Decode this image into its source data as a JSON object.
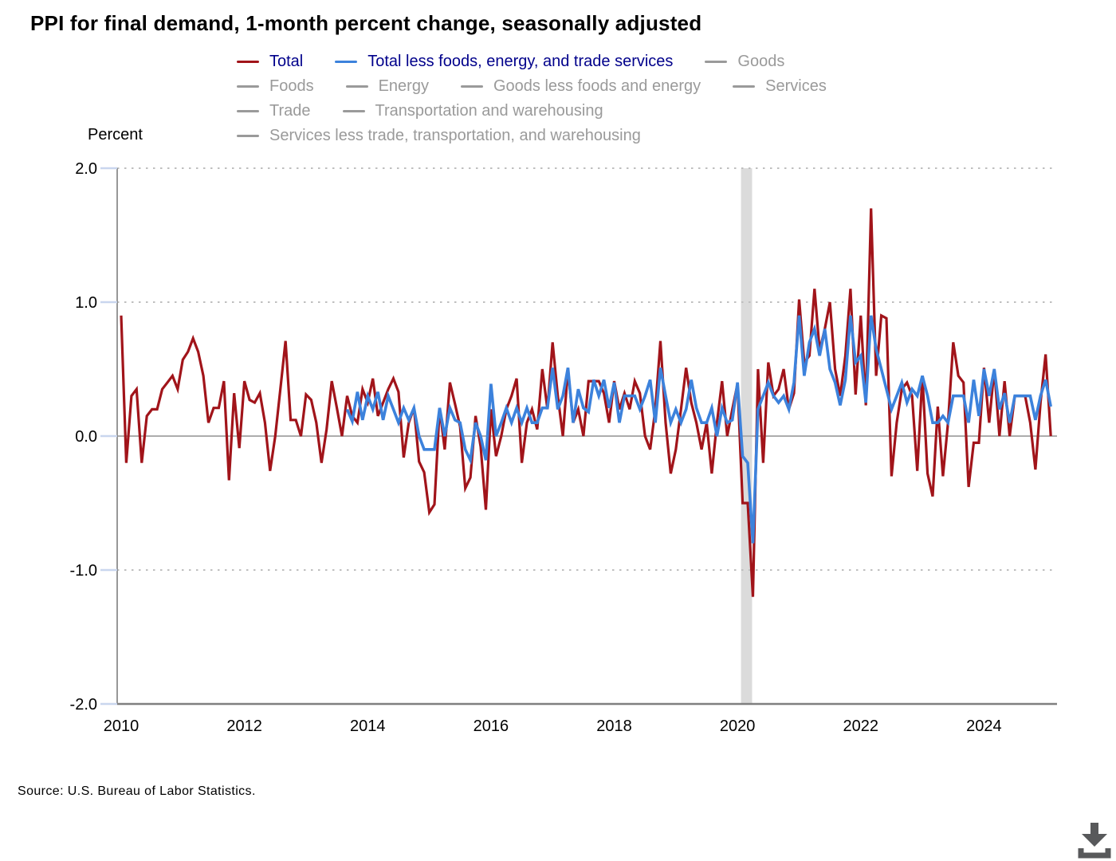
{
  "title": "PPI for final demand, 1-month percent change, seasonally adjusted",
  "source": "Source: U.S. Bureau of Labor Statistics.",
  "colors": {
    "total": "#A1141A",
    "core": "#3C82DC",
    "inactive": "#9A9A9A",
    "active_label": "#00008B",
    "recession_band": "#DBDBDB",
    "zero_line": "#ADADAD",
    "grid_dotted": "#BFBFBF",
    "axis": "#7F7F7F",
    "tick": "#C9D6EE",
    "download_icon": "#58595B"
  },
  "legend": {
    "rows": [
      [
        {
          "label": "Total",
          "state": "active",
          "series": "total"
        },
        {
          "label": "Total less foods, energy, and trade services",
          "state": "active",
          "series": "core"
        },
        {
          "label": "Goods",
          "state": "inactive",
          "series": "inactive"
        }
      ],
      [
        {
          "label": "Foods",
          "state": "inactive",
          "series": "inactive"
        },
        {
          "label": "Energy",
          "state": "inactive",
          "series": "inactive"
        },
        {
          "label": "Goods less foods and energy",
          "state": "inactive",
          "series": "inactive"
        },
        {
          "label": "Services",
          "state": "inactive",
          "series": "inactive"
        }
      ],
      [
        {
          "label": "Trade",
          "state": "inactive",
          "series": "inactive"
        },
        {
          "label": "Transportation and warehousing",
          "state": "inactive",
          "series": "inactive"
        }
      ],
      [
        {
          "label": "Services less trade, transportation, and warehousing",
          "state": "inactive",
          "series": "inactive"
        }
      ]
    ]
  },
  "chart_data": {
    "type": "line",
    "title": "PPI for final demand, 1-month percent change, seasonally adjusted",
    "ylabel": "Percent",
    "xlabel": "",
    "ylim": [
      -2.0,
      2.0
    ],
    "yticks": [
      "2.0",
      "1.0",
      "0.0",
      "-1.0",
      "-2.0"
    ],
    "ytick_values": [
      2.0,
      1.0,
      0.0,
      -1.0,
      -2.0
    ],
    "xticks": [
      "2010",
      "2012",
      "2014",
      "2016",
      "2018",
      "2020",
      "2022",
      "2024"
    ],
    "x_unit": "month",
    "x_start": "2010-01",
    "x_end": "2025-02",
    "grid": "dotted horizontal at -1.0, 1.0, 2.0; solid at 0.0",
    "legend_position": "top",
    "recession_band": {
      "from": "2020-02",
      "to": "2020-04"
    },
    "series": [
      {
        "name": "Total",
        "color": "#A1141A",
        "start": "2010-01",
        "start_month_index": 0,
        "values": [
          0.9,
          -0.2,
          0.3,
          0.35,
          -0.2,
          0.15,
          0.2,
          0.2,
          0.35,
          0.4,
          0.45,
          0.35,
          0.57,
          0.63,
          0.73,
          0.63,
          0.45,
          0.1,
          0.21,
          0.21,
          0.41,
          -0.33,
          0.32,
          -0.09,
          0.41,
          0.27,
          0.25,
          0.32,
          0.1,
          -0.26,
          0.0,
          0.35,
          0.71,
          0.12,
          0.12,
          0.0,
          0.31,
          0.27,
          0.1,
          -0.2,
          0.05,
          0.41,
          0.21,
          0.0,
          0.3,
          0.15,
          0.1,
          0.35,
          0.25,
          0.43,
          0.15,
          0.25,
          0.35,
          0.43,
          0.33,
          -0.16,
          0.1,
          0.21,
          -0.19,
          -0.27,
          -0.57,
          -0.51,
          0.21,
          -0.1,
          0.4,
          0.24,
          0.07,
          -0.39,
          -0.31,
          0.15,
          -0.08,
          -0.55,
          0.2,
          -0.15,
          0.0,
          0.2,
          0.3,
          0.43,
          -0.2,
          0.1,
          0.2,
          0.05,
          0.5,
          0.2,
          0.7,
          0.3,
          0.0,
          0.5,
          0.1,
          0.2,
          0.0,
          0.41,
          0.41,
          0.41,
          0.32,
          0.1,
          0.41,
          0.2,
          0.32,
          0.2,
          0.41,
          0.32,
          0.0,
          -0.1,
          0.2,
          0.71,
          0.1,
          -0.28,
          -0.1,
          0.2,
          0.51,
          0.25,
          0.1,
          -0.1,
          0.1,
          -0.28,
          0.1,
          0.41,
          0.0,
          0.2,
          0.39,
          -0.5,
          -0.5,
          -1.2,
          0.5,
          -0.2,
          0.55,
          0.3,
          0.35,
          0.5,
          0.2,
          0.32,
          1.02,
          0.55,
          0.6,
          1.1,
          0.64,
          0.8,
          1.0,
          0.5,
          0.3,
          0.6,
          1.1,
          0.31,
          0.9,
          0.23,
          1.7,
          0.45,
          0.9,
          0.88,
          -0.3,
          0.1,
          0.35,
          0.4,
          0.3,
          -0.26,
          0.45,
          -0.28,
          -0.45,
          0.22,
          -0.3,
          0.1,
          0.7,
          0.45,
          0.4,
          -0.38,
          -0.05,
          -0.05,
          0.51,
          0.1,
          0.5,
          0.0,
          0.41,
          0.0,
          0.3,
          0.3,
          0.3,
          0.1,
          -0.25,
          0.25,
          0.61,
          0.0
        ]
      },
      {
        "name": "Total less foods, energy, and trade services",
        "color": "#3C82DC",
        "start": "2013-09",
        "start_month_index": 44,
        "values": [
          0.2,
          0.11,
          0.33,
          0.12,
          0.3,
          0.2,
          0.33,
          0.12,
          0.3,
          0.2,
          0.1,
          0.21,
          0.12,
          0.21,
          0.0,
          -0.1,
          -0.1,
          -0.1,
          0.21,
          0.0,
          0.21,
          0.12,
          0.1,
          -0.1,
          -0.18,
          0.1,
          0.0,
          -0.18,
          0.39,
          0.0,
          0.1,
          0.21,
          0.1,
          0.21,
          0.1,
          0.21,
          0.1,
          0.1,
          0.21,
          0.21,
          0.51,
          0.2,
          0.3,
          0.51,
          0.1,
          0.35,
          0.21,
          0.18,
          0.42,
          0.3,
          0.42,
          0.21,
          0.4,
          0.1,
          0.3,
          0.3,
          0.3,
          0.2,
          0.3,
          0.42,
          0.1,
          0.51,
          0.3,
          0.1,
          0.2,
          0.1,
          0.2,
          0.42,
          0.21,
          0.1,
          0.1,
          0.21,
          0.0,
          0.21,
          0.1,
          0.12,
          0.4,
          -0.15,
          -0.2,
          -0.8,
          0.2,
          0.3,
          0.4,
          0.3,
          0.25,
          0.3,
          0.2,
          0.4,
          0.9,
          0.45,
          0.7,
          0.8,
          0.6,
          0.8,
          0.5,
          0.4,
          0.23,
          0.42,
          0.9,
          0.55,
          0.6,
          0.25,
          0.9,
          0.65,
          0.5,
          0.35,
          0.2,
          0.3,
          0.4,
          0.25,
          0.35,
          0.3,
          0.45,
          0.3,
          0.1,
          0.1,
          0.15,
          0.1,
          0.3,
          0.3,
          0.3,
          0.1,
          0.42,
          0.15,
          0.5,
          0.3,
          0.5,
          0.2,
          0.32,
          0.1,
          0.3,
          0.3,
          0.3,
          0.3,
          0.12,
          0.3,
          0.42,
          0.22
        ]
      }
    ],
    "inactive_series": [
      "Goods",
      "Foods",
      "Energy",
      "Goods less foods and energy",
      "Services",
      "Trade",
      "Transportation and warehousing",
      "Services less trade, transportation, and warehousing"
    ]
  },
  "download": {
    "tooltip": "download"
  }
}
